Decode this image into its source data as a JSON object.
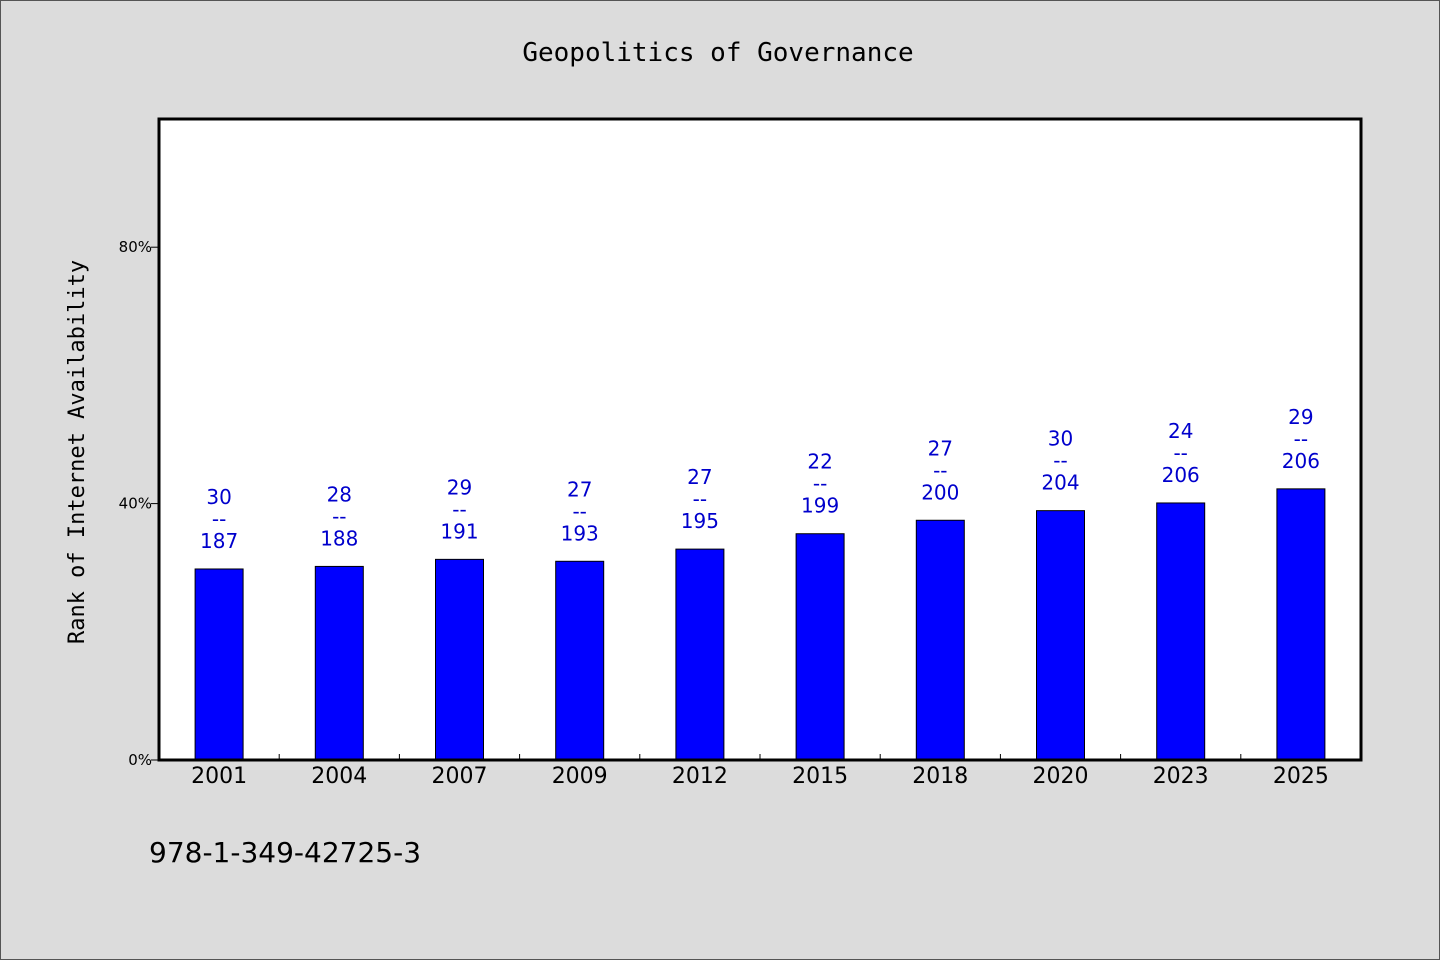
{
  "chart_data": {
    "type": "bar",
    "title": "Geopolitics of Governance",
    "ylabel": "Rank of Internet Availability",
    "xlabel": "",
    "categories": [
      "2001",
      "2004",
      "2007",
      "2009",
      "2012",
      "2015",
      "2018",
      "2020",
      "2023",
      "2025"
    ],
    "values": [
      29.8,
      30.2,
      31.3,
      31.0,
      32.9,
      35.3,
      37.4,
      38.9,
      40.1,
      42.3
    ],
    "data_labels": [
      {
        "rank": "30",
        "sep": "--",
        "total": "187"
      },
      {
        "rank": "28",
        "sep": "--",
        "total": "188"
      },
      {
        "rank": "29",
        "sep": "--",
        "total": "191"
      },
      {
        "rank": "27",
        "sep": "--",
        "total": "193"
      },
      {
        "rank": "27",
        "sep": "--",
        "total": "195"
      },
      {
        "rank": "22",
        "sep": "--",
        "total": "199"
      },
      {
        "rank": "27",
        "sep": "--",
        "total": "200"
      },
      {
        "rank": "30",
        "sep": "--",
        "total": "204"
      },
      {
        "rank": "24",
        "sep": "--",
        "total": "206"
      },
      {
        "rank": "29",
        "sep": "--",
        "total": "206"
      }
    ],
    "ylim": [
      0,
      100
    ],
    "yticks": [
      {
        "value": 0,
        "label": "0%"
      },
      {
        "value": 40,
        "label": "40%"
      },
      {
        "value": 80,
        "label": "80%"
      }
    ],
    "grid": false,
    "colors": {
      "bar": "#0000ff",
      "label": "#0000cc",
      "background": "#dcdcdc",
      "plot": "#ffffff"
    }
  },
  "footer": {
    "isbn": "978-1-349-42725-3"
  }
}
